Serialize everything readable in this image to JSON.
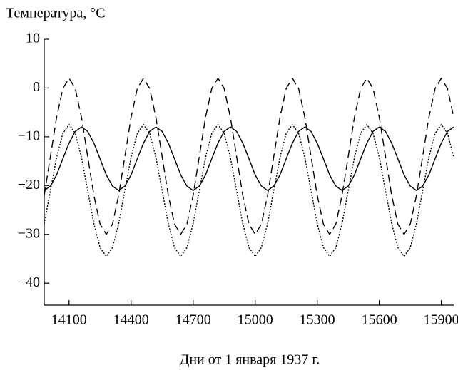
{
  "chart_data": {
    "type": "line",
    "title": "Температура, °C",
    "x_label": "Дни от 1 января 1937 г.",
    "x": [
      13980,
      14010,
      14040,
      14070,
      14100,
      14130,
      14160,
      14190,
      14220,
      14250,
      14280,
      14310,
      14340,
      14370,
      14400,
      14430,
      14460,
      14490,
      14520,
      14550,
      14580,
      14610,
      14640,
      14670,
      14700,
      14730,
      14760,
      14790,
      14820,
      14850,
      14880,
      14910,
      14940,
      14970,
      15000,
      15030,
      15060,
      15090,
      15120,
      15150,
      15180,
      15210,
      15240,
      15270,
      15300,
      15330,
      15360,
      15390,
      15420,
      15450,
      15480,
      15510,
      15540,
      15570,
      15600,
      15630,
      15660,
      15690,
      15720,
      15750,
      15780,
      15810,
      15840,
      15870,
      15900,
      15930,
      15960
    ],
    "series": [
      {
        "color": "#000000",
        "dash": "solid",
        "values": [
          -21,
          -20.1,
          -17.8,
          -14.5,
          -11.3,
          -8.9,
          -8,
          -8.9,
          -11.3,
          -14.5,
          -17.8,
          -20.1,
          -21,
          -20.1,
          -17.8,
          -14.5,
          -11.3,
          -8.9,
          -8,
          -8.9,
          -11.3,
          -14.5,
          -17.8,
          -20.1,
          -21,
          -20.1,
          -17.8,
          -14.5,
          -11.3,
          -8.9,
          -8,
          -8.9,
          -11.3,
          -14.5,
          -17.8,
          -20.1,
          -21,
          -20.1,
          -17.8,
          -14.5,
          -11.3,
          -8.9,
          -8,
          -8.9,
          -11.3,
          -14.5,
          -17.8,
          -20.1,
          -21,
          -20.1,
          -17.8,
          -14.5,
          -11.3,
          -8.9,
          -8,
          -8.9,
          -11.3,
          -14.5,
          -17.8,
          -20.1,
          -21,
          -20.1,
          -17.8,
          -14.5,
          -11.3,
          -8.9,
          -8
        ]
      },
      {
        "color": "#000000",
        "dash": "dotted",
        "values": [
          -27.8,
          -21,
          -14.2,
          -9.3,
          -7.5,
          -9.3,
          -14.2,
          -21,
          -27.8,
          -32.7,
          -34.5,
          -32.7,
          -27.8,
          -21,
          -14.2,
          -9.3,
          -7.5,
          -9.3,
          -14.2,
          -21,
          -27.8,
          -32.7,
          -34.5,
          -32.7,
          -27.8,
          -21,
          -14.2,
          -9.3,
          -7.5,
          -9.3,
          -14.2,
          -21,
          -27.8,
          -32.7,
          -34.5,
          -32.7,
          -27.8,
          -21,
          -14.2,
          -9.3,
          -7.5,
          -9.3,
          -14.2,
          -21,
          -27.8,
          -32.7,
          -34.5,
          -32.7,
          -27.8,
          -21,
          -14.2,
          -9.3,
          -7.5,
          -9.3,
          -14.2,
          -21,
          -27.8,
          -32.7,
          -34.5,
          -32.7,
          -27.8,
          -21,
          -14.2,
          -9.3,
          -7.5,
          -9.3,
          -14.2
        ]
      },
      {
        "color": "#000000",
        "dash": "dashed",
        "values": [
          -22,
          -14,
          -6,
          -0.1,
          2,
          -0.1,
          -6,
          -14,
          -22,
          -27.9,
          -30,
          -27.9,
          -22,
          -14,
          -6,
          -0.1,
          2,
          -0.1,
          -6,
          -14,
          -22,
          -27.9,
          -30,
          -27.9,
          -22,
          -14,
          -6,
          -0.1,
          2,
          -0.1,
          -6,
          -14,
          -22,
          -27.9,
          -30,
          -27.9,
          -22,
          -14,
          -6,
          -0.1,
          2,
          -0.1,
          -6,
          -14,
          -22,
          -27.9,
          -30,
          -27.9,
          -22,
          -14,
          -6,
          -0.1,
          2,
          -0.1,
          -6,
          -14,
          -22,
          -27.9,
          -30,
          -27.9,
          -22,
          -14,
          -6,
          -0.1,
          2,
          -0.1,
          -6
        ]
      }
    ],
    "xlim": [
      13980,
      15960
    ],
    "xticks": [
      14100,
      14400,
      14700,
      15000,
      15300,
      15600,
      15900
    ],
    "ylim": [
      -44.5,
      10
    ],
    "yticks": [
      10,
      0,
      {
        "value": -10,
        "label": "−10"
      },
      {
        "value": -20,
        "label": "−20"
      },
      {
        "value": -30,
        "label": "−30"
      },
      {
        "value": -40,
        "label": "−40"
      }
    ],
    "grid": false
  }
}
